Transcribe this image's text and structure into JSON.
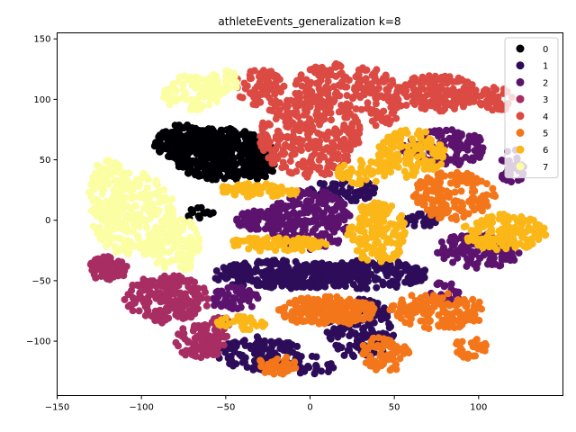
{
  "chart_data": {
    "type": "scatter",
    "title": "athleteEvents_generalization k=8",
    "xlabel": "",
    "ylabel": "",
    "xlim": [
      -150,
      150
    ],
    "ylim": [
      -145,
      155
    ],
    "x_ticks": [
      -150,
      -100,
      -50,
      0,
      50,
      100
    ],
    "y_ticks": [
      -100,
      -50,
      0,
      50,
      100,
      150
    ],
    "x_tick_labels": [
      "−150",
      "−100",
      "−50",
      "0",
      "50",
      "100"
    ],
    "y_tick_labels": [
      "−100",
      "−50",
      "0",
      "50",
      "100",
      "150"
    ],
    "grid": false,
    "legend_position": "top-right",
    "series": [
      {
        "name": "0",
        "color": "#000004",
        "regions": [
          {
            "cx": -52,
            "cy": 55,
            "rx": 30,
            "ry": 22,
            "n": 320
          },
          {
            "cx": -75,
            "cy": 65,
            "rx": 18,
            "ry": 15,
            "n": 140
          },
          {
            "cx": -30,
            "cy": 50,
            "rx": 10,
            "ry": 20,
            "n": 60
          },
          {
            "cx": -65,
            "cy": 5,
            "rx": 8,
            "ry": 6,
            "n": 14
          }
        ]
      },
      {
        "name": "1",
        "color": "#2d0d59",
        "regions": [
          {
            "cx": -15,
            "cy": -45,
            "rx": 45,
            "ry": 12,
            "n": 260
          },
          {
            "cx": 35,
            "cy": -45,
            "rx": 35,
            "ry": 12,
            "n": 180
          },
          {
            "cx": -30,
            "cy": -110,
            "rx": 25,
            "ry": 14,
            "n": 110
          },
          {
            "cx": 30,
            "cy": -90,
            "rx": 20,
            "ry": 25,
            "n": 120
          },
          {
            "cx": 20,
            "cy": 25,
            "rx": 20,
            "ry": 10,
            "n": 70
          },
          {
            "cx": 65,
            "cy": 0,
            "rx": 10,
            "ry": 6,
            "n": 30
          },
          {
            "cx": 0,
            "cy": -120,
            "rx": 15,
            "ry": 8,
            "n": 30
          }
        ]
      },
      {
        "name": "2",
        "color": "#5c136e",
        "regions": [
          {
            "cx": 0,
            "cy": 0,
            "rx": 25,
            "ry": 25,
            "n": 220
          },
          {
            "cx": -30,
            "cy": 0,
            "rx": 15,
            "ry": 8,
            "n": 70
          },
          {
            "cx": 80,
            "cy": 60,
            "rx": 25,
            "ry": 15,
            "n": 130
          },
          {
            "cx": 100,
            "cy": -25,
            "rx": 25,
            "ry": 15,
            "n": 130
          },
          {
            "cx": -45,
            "cy": -65,
            "rx": 15,
            "ry": 10,
            "n": 60
          },
          {
            "cx": 120,
            "cy": 45,
            "rx": 8,
            "ry": 15,
            "n": 35
          },
          {
            "cx": 80,
            "cy": -60,
            "rx": 10,
            "ry": 10,
            "n": 30
          }
        ]
      },
      {
        "name": "3",
        "color": "#a72d63",
        "regions": [
          {
            "cx": -85,
            "cy": -65,
            "rx": 25,
            "ry": 20,
            "n": 200
          },
          {
            "cx": -120,
            "cy": -40,
            "rx": 12,
            "ry": 10,
            "n": 60
          },
          {
            "cx": -65,
            "cy": -100,
            "rx": 15,
            "ry": 15,
            "n": 80
          },
          {
            "cx": -55,
            "cy": -90,
            "rx": 8,
            "ry": 12,
            "n": 30
          }
        ]
      },
      {
        "name": "4",
        "color": "#db4a43",
        "regions": [
          {
            "cx": 0,
            "cy": 70,
            "rx": 30,
            "ry": 35,
            "n": 280
          },
          {
            "cx": 20,
            "cy": 110,
            "rx": 30,
            "ry": 20,
            "n": 170
          },
          {
            "cx": 75,
            "cy": 105,
            "rx": 25,
            "ry": 15,
            "n": 160
          },
          {
            "cx": -30,
            "cy": 110,
            "rx": 15,
            "ry": 15,
            "n": 70
          },
          {
            "cx": 110,
            "cy": 100,
            "rx": 10,
            "ry": 10,
            "n": 40
          },
          {
            "cx": 45,
            "cy": 90,
            "rx": 10,
            "ry": 15,
            "n": 40
          }
        ]
      },
      {
        "name": "5",
        "color": "#f4761a",
        "regions": [
          {
            "cx": 10,
            "cy": -75,
            "rx": 30,
            "ry": 12,
            "n": 180
          },
          {
            "cx": -20,
            "cy": -120,
            "rx": 12,
            "ry": 8,
            "n": 40
          },
          {
            "cx": 45,
            "cy": -110,
            "rx": 15,
            "ry": 15,
            "n": 70
          },
          {
            "cx": 75,
            "cy": -75,
            "rx": 30,
            "ry": 15,
            "n": 150
          },
          {
            "cx": 85,
            "cy": 20,
            "rx": 25,
            "ry": 20,
            "n": 150
          },
          {
            "cx": 95,
            "cy": -105,
            "rx": 10,
            "ry": 10,
            "n": 30
          },
          {
            "cx": 30,
            "cy": -75,
            "rx": 8,
            "ry": 8,
            "n": 20
          }
        ]
      },
      {
        "name": "6",
        "color": "#fbb618",
        "regions": [
          {
            "cx": 40,
            "cy": -10,
            "rx": 18,
            "ry": 25,
            "n": 150
          },
          {
            "cx": 60,
            "cy": 55,
            "rx": 20,
            "ry": 20,
            "n": 130
          },
          {
            "cx": 115,
            "cy": -10,
            "rx": 25,
            "ry": 15,
            "n": 130
          },
          {
            "cx": -20,
            "cy": -20,
            "rx": 30,
            "ry": 6,
            "n": 100
          },
          {
            "cx": -30,
            "cy": 25,
            "rx": 25,
            "ry": 6,
            "n": 70
          },
          {
            "cx": 30,
            "cy": 40,
            "rx": 15,
            "ry": 10,
            "n": 40
          },
          {
            "cx": -40,
            "cy": -85,
            "rx": 15,
            "ry": 6,
            "n": 30
          }
        ]
      },
      {
        "name": "7",
        "color": "#fcfea3",
        "regions": [
          {
            "cx": -105,
            "cy": 5,
            "rx": 25,
            "ry": 35,
            "n": 260
          },
          {
            "cx": -80,
            "cy": -20,
            "rx": 15,
            "ry": 25,
            "n": 110
          },
          {
            "cx": -70,
            "cy": 105,
            "rx": 18,
            "ry": 15,
            "n": 100
          },
          {
            "cx": -120,
            "cy": 25,
            "rx": 12,
            "ry": 25,
            "n": 80
          },
          {
            "cx": -50,
            "cy": 115,
            "rx": 10,
            "ry": 10,
            "n": 30
          }
        ]
      }
    ]
  }
}
